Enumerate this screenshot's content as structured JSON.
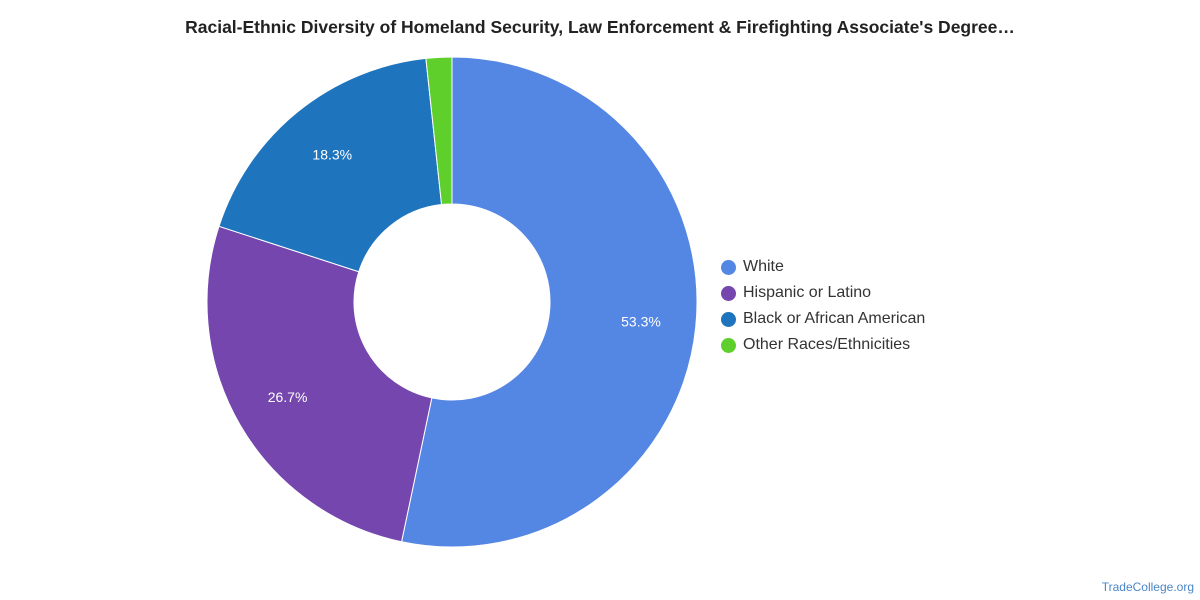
{
  "chart_data": {
    "type": "pie",
    "title": "Racial-Ethnic Diversity of Homeland Security, Law Enforcement & Firefighting Associate's Degree…",
    "legend_position": "right",
    "slices": [
      {
        "label": "White",
        "value": 53.3,
        "value_label": "53.3%",
        "color": "#5486e3"
      },
      {
        "label": "Hispanic or Latino",
        "value": 26.7,
        "value_label": "26.7%",
        "color": "#7446ae"
      },
      {
        "label": "Black or African American",
        "value": 18.3,
        "value_label": "18.3%",
        "color": "#1e74bd"
      },
      {
        "label": "Other Races/Ethnicities",
        "value": 1.7,
        "value_label": "",
        "color": "#5fcf2c"
      }
    ]
  },
  "footer": {
    "source": "TradeCollege.org"
  }
}
